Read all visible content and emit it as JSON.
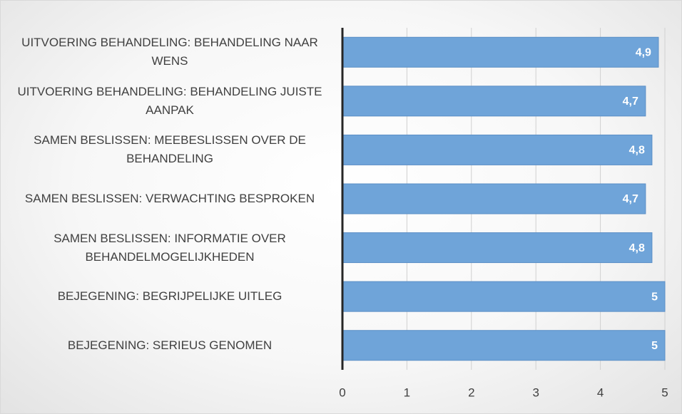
{
  "chart_data": {
    "type": "bar",
    "orientation": "horizontal",
    "categories": [
      "UITVOERING BEHANDELING: BEHANDELING NAAR WENS",
      "UITVOERING BEHANDELING: BEHANDELING JUISTE AANPAK",
      "SAMEN BESLISSEN: MEEBESLISSEN OVER DE BEHANDELING",
      "SAMEN BESLISSEN: VERWACHTING BESPROKEN",
      "SAMEN BESLISSEN: INFORMATIE OVER BEHANDELMOGELIJKHEDEN",
      "BEJEGENING: BEGRIJPELIJKE UITLEG",
      "BEJEGENING: SERIEUS GENOMEN"
    ],
    "values": [
      4.9,
      4.7,
      4.8,
      4.7,
      4.8,
      5,
      5
    ],
    "value_labels": [
      "4,9",
      "4,7",
      "4,8",
      "4,7",
      "4,8",
      "5",
      "5"
    ],
    "color": "#6fa4d9",
    "xlim": [
      0,
      5
    ],
    "xticks": [
      0,
      1,
      2,
      3,
      4,
      5
    ],
    "grid": true
  }
}
